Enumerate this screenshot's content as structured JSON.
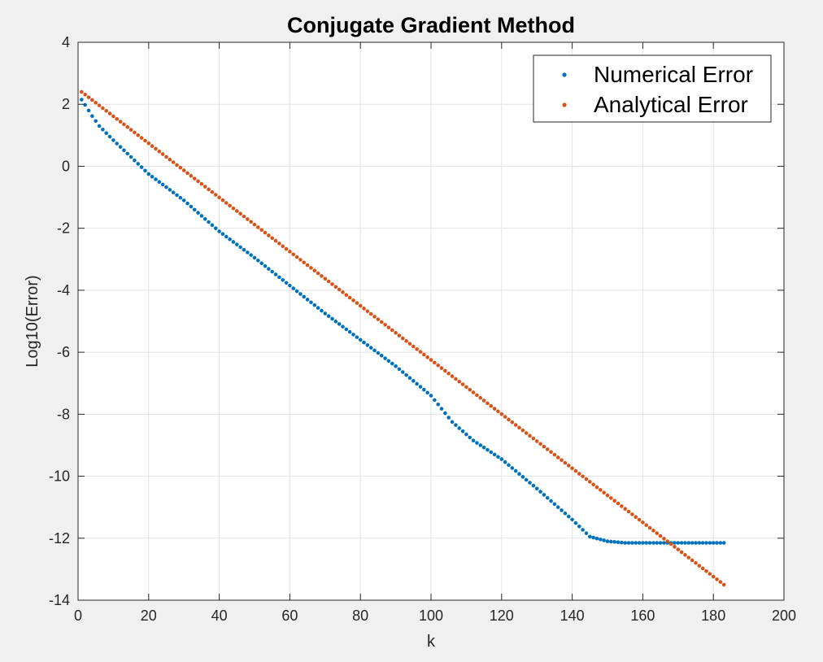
{
  "chart_data": {
    "type": "scatter",
    "title": "Conjugate Gradient Method",
    "xlabel": "k",
    "ylabel": "Log10(Error)",
    "xlim": [
      0,
      200
    ],
    "ylim": [
      -14,
      4
    ],
    "xticks": [
      0,
      20,
      40,
      60,
      80,
      100,
      120,
      140,
      160,
      180,
      200
    ],
    "yticks": [
      4,
      2,
      0,
      -2,
      -4,
      -6,
      -8,
      -10,
      -12,
      -14
    ],
    "xtick_labels": [
      "0",
      "20",
      "40",
      "60",
      "80",
      "100",
      "120",
      "140",
      "160",
      "180",
      "200"
    ],
    "ytick_labels": [
      "4",
      "2",
      "0",
      "-2",
      "-4",
      "-6",
      "-8",
      "-10",
      "-12",
      "-14"
    ],
    "grid": true,
    "legend_position": "top-right",
    "series": [
      {
        "name": "Numerical Error",
        "color": "#0072BD",
        "x_start": 1,
        "x_end": 183,
        "profile": [
          [
            1,
            2.15
          ],
          [
            2,
            1.98
          ],
          [
            4,
            1.62
          ],
          [
            6,
            1.3
          ],
          [
            10,
            0.84
          ],
          [
            15,
            0.3
          ],
          [
            20,
            -0.25
          ],
          [
            30,
            -1.1
          ],
          [
            40,
            -2.1
          ],
          [
            50,
            -2.95
          ],
          [
            60,
            -3.85
          ],
          [
            70,
            -4.75
          ],
          [
            80,
            -5.6
          ],
          [
            90,
            -6.45
          ],
          [
            100,
            -7.4
          ],
          [
            106,
            -8.25
          ],
          [
            112,
            -8.85
          ],
          [
            120,
            -9.45
          ],
          [
            130,
            -10.4
          ],
          [
            140,
            -11.4
          ],
          [
            145,
            -11.95
          ],
          [
            150,
            -12.1
          ],
          [
            155,
            -12.15
          ],
          [
            183,
            -12.15
          ]
        ]
      },
      {
        "name": "Analytical Error",
        "color": "#D95319",
        "x_start": 1,
        "x_end": 183,
        "profile": [
          [
            1,
            2.4
          ],
          [
            183,
            -13.5
          ]
        ]
      }
    ]
  }
}
